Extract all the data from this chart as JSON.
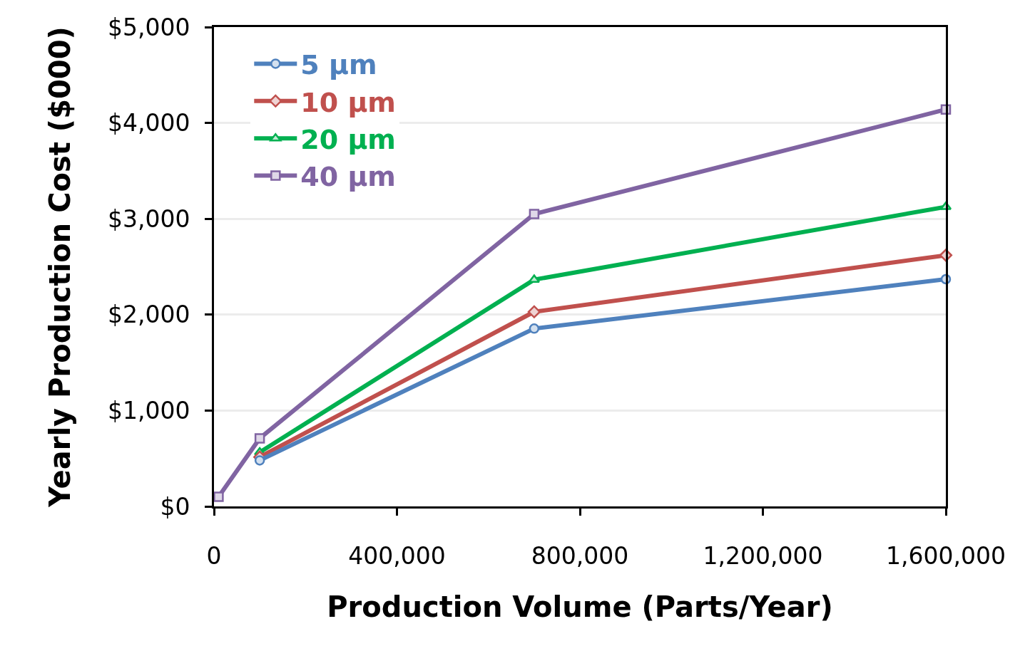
{
  "chart_data": {
    "type": "line",
    "xlabel": "Production Volume (Parts/Year)",
    "ylabel": "Yearly Production Cost ($000)",
    "x": [
      10000,
      100000,
      700000,
      1600000
    ],
    "series": [
      {
        "name": "5 µm",
        "color": "#4f81bd",
        "marker": "circle",
        "values": [
          null,
          480,
          1855,
          2370
        ]
      },
      {
        "name": "10 µm",
        "color": "#c0504d",
        "marker": "diamond",
        "values": [
          null,
          515,
          2030,
          2620
        ]
      },
      {
        "name": "20 µm",
        "color": "#00b050",
        "marker": "triangle",
        "values": [
          null,
          565,
          2365,
          3125
        ]
      },
      {
        "name": "40 µm",
        "color": "#8064a2",
        "marker": "square",
        "values": [
          100,
          710,
          3050,
          4140
        ]
      }
    ],
    "xlim": [
      0,
      1600000
    ],
    "xticks": [
      {
        "value": 0,
        "label": "0"
      },
      {
        "value": 400000,
        "label": "400,000"
      },
      {
        "value": 800000,
        "label": "800,000"
      },
      {
        "value": 1200000,
        "label": "1,200,000"
      },
      {
        "value": 1600000,
        "label": "1,600,000"
      }
    ],
    "ylim": [
      0,
      5000
    ],
    "yticks": [
      {
        "value": 0,
        "label": "$0"
      },
      {
        "value": 1000,
        "label": "$1,000"
      },
      {
        "value": 2000,
        "label": "$2,000"
      },
      {
        "value": 3000,
        "label": "$3,000"
      },
      {
        "value": 4000,
        "label": "$4,000"
      },
      {
        "value": 5000,
        "label": "$5,000"
      }
    ],
    "grid": "y",
    "legend": "top left",
    "line_style": "solid"
  }
}
